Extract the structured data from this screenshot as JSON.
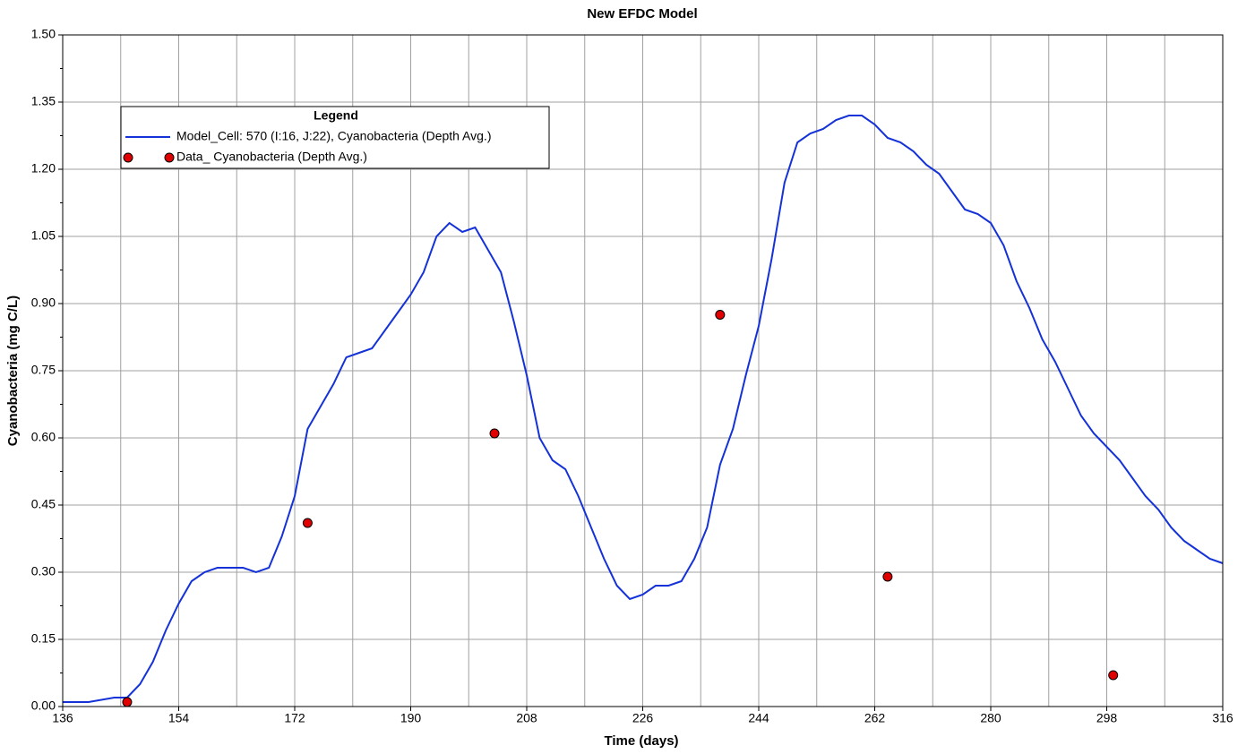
{
  "chart_data": {
    "type": "line",
    "title": "New EFDC Model",
    "x_label": "Time (days)",
    "y_label": "Cyanobacteria (mg C/L)",
    "legend_title": "Legend",
    "legend_position": "upper left",
    "grid": true,
    "xlim": [
      136,
      316
    ],
    "xticks": [
      136,
      154,
      172,
      190,
      208,
      226,
      244,
      262,
      280,
      298,
      316
    ],
    "xminor": [
      145,
      163,
      181,
      199,
      217,
      235,
      253,
      271,
      289,
      307
    ],
    "ylim": [
      0,
      1.5
    ],
    "yticks": [
      {
        "value": 0,
        "label": "0.00"
      },
      {
        "value": 0.15,
        "label": "0.15"
      },
      {
        "value": 0.3,
        "label": "0.30"
      },
      {
        "value": 0.45,
        "label": "0.45"
      },
      {
        "value": 0.6,
        "label": "0.60"
      },
      {
        "value": 0.75,
        "label": "0.75"
      },
      {
        "value": 0.9,
        "label": "0.90"
      },
      {
        "value": 1.05,
        "label": "1.05"
      },
      {
        "value": 1.2,
        "label": "1.20"
      },
      {
        "value": 1.35,
        "label": "1.35"
      },
      {
        "value": 1.5,
        "label": "1.50"
      }
    ],
    "yminor": [
      0.075,
      0.225,
      0.375,
      0.525,
      0.675,
      0.825,
      0.975,
      1.125,
      1.275,
      1.425
    ],
    "series": [
      {
        "name": "Model_Cell: 570 (I:16, J:22), Cyanobacteria (Depth Avg.)",
        "color": "#1432d8",
        "style": "line",
        "x": [
          136,
          140,
          144,
          146,
          148,
          150,
          152,
          154,
          156,
          158,
          160,
          162,
          164,
          166,
          168,
          170,
          172,
          174,
          176,
          178,
          180,
          182,
          184,
          186,
          188,
          190,
          192,
          194,
          196,
          198,
          200,
          202,
          204,
          206,
          208,
          210,
          212,
          214,
          216,
          218,
          220,
          222,
          224,
          226,
          228,
          230,
          232,
          234,
          236,
          238,
          240,
          242,
          244,
          246,
          248,
          250,
          252,
          254,
          256,
          258,
          260,
          262,
          264,
          266,
          268,
          270,
          272,
          274,
          276,
          278,
          280,
          282,
          284,
          286,
          288,
          290,
          292,
          294,
          296,
          298,
          300,
          302,
          304,
          306,
          308,
          310,
          312,
          314,
          316
        ],
        "values": [
          0.01,
          0.01,
          0.02,
          0.02,
          0.05,
          0.1,
          0.17,
          0.23,
          0.28,
          0.3,
          0.31,
          0.31,
          0.31,
          0.3,
          0.31,
          0.38,
          0.47,
          0.62,
          0.67,
          0.72,
          0.78,
          0.79,
          0.8,
          0.84,
          0.88,
          0.92,
          0.97,
          1.05,
          1.08,
          1.06,
          1.07,
          1.02,
          0.97,
          0.86,
          0.74,
          0.6,
          0.55,
          0.53,
          0.47,
          0.4,
          0.33,
          0.27,
          0.24,
          0.25,
          0.27,
          0.27,
          0.28,
          0.33,
          0.4,
          0.54,
          0.62,
          0.74,
          0.85,
          1.0,
          1.17,
          1.26,
          1.28,
          1.29,
          1.31,
          1.32,
          1.32,
          1.3,
          1.27,
          1.26,
          1.24,
          1.21,
          1.19,
          1.15,
          1.11,
          1.1,
          1.08,
          1.03,
          0.95,
          0.89,
          0.82,
          0.77,
          0.71,
          0.65,
          0.61,
          0.58,
          0.55,
          0.51,
          0.47,
          0.44,
          0.4,
          0.37,
          0.35,
          0.33,
          0.32
        ]
      },
      {
        "name": "Data_ Cyanobacteria (Depth Avg.)",
        "color": "#e00000",
        "style": "points",
        "x": [
          146,
          174,
          203,
          238,
          264,
          299
        ],
        "values": [
          0.01,
          0.41,
          0.61,
          0.875,
          0.29,
          0.07
        ]
      }
    ]
  }
}
